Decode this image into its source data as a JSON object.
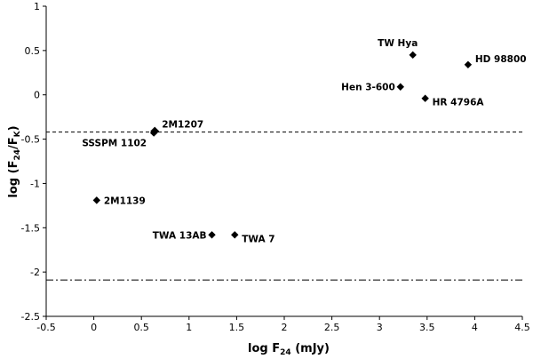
{
  "chart_data": {
    "type": "scatter",
    "xlabel_main": "log F",
    "xlabel_sub": "24",
    "xlabel_unit": " (mJy)",
    "ylabel_a": "log (F",
    "ylabel_sub1": "24",
    "ylabel_mid": "/F",
    "ylabel_sub2": "K",
    "ylabel_end": ")",
    "xlim": [
      -0.5,
      4.5
    ],
    "ylim": [
      -2.5,
      1
    ],
    "x_ticks": [
      "-0.5",
      "0",
      "0.5",
      "1",
      "1.5",
      "2",
      "2.5",
      "3",
      "3.5",
      "4",
      "4.5"
    ],
    "y_ticks": [
      "1",
      "0.5",
      "0",
      "-0.5",
      "-1",
      "-1.5",
      "-2",
      "-2.5"
    ],
    "grid": false,
    "reference_lines": [
      {
        "style": "dashed",
        "y": -0.42
      },
      {
        "style": "dash-dot",
        "y": -2.09
      }
    ],
    "points": [
      {
        "label": "TW Hya",
        "x": 3.35,
        "y": 0.45,
        "anchor": "above"
      },
      {
        "label": "HD 98800",
        "x": 3.93,
        "y": 0.34,
        "anchor": "right-up"
      },
      {
        "label": "Hen 3-600",
        "x": 3.22,
        "y": 0.09,
        "anchor": "left"
      },
      {
        "label": "HR 4796A",
        "x": 3.48,
        "y": -0.04,
        "anchor": "right-down"
      },
      {
        "label": "2M1207",
        "x": 0.64,
        "y": -0.41,
        "anchor": "right-up"
      },
      {
        "label": "SSSPM 1102",
        "x": 0.63,
        "y": -0.43,
        "anchor": "left-down"
      },
      {
        "label": "2M1139",
        "x": 0.03,
        "y": -1.19,
        "anchor": "right"
      },
      {
        "label": "TWA 13AB",
        "x": 1.24,
        "y": -1.58,
        "anchor": "left"
      },
      {
        "label": "TWA 7",
        "x": 1.48,
        "y": -1.58,
        "anchor": "right-down"
      }
    ]
  }
}
